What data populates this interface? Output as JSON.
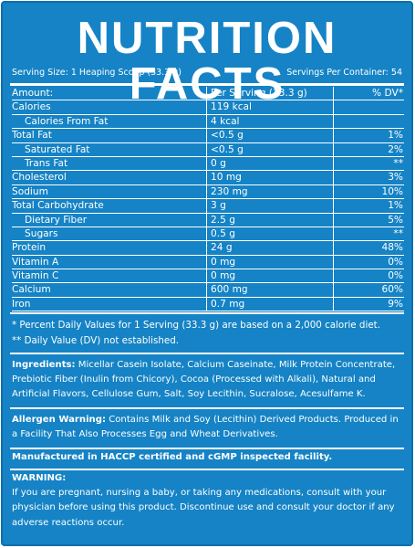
{
  "title": "NUTRITION FACTS",
  "serving_size": "Serving Size: 1 Heaping Scoop (33.3 g)",
  "servings_per_container": "Servings Per Container: 54",
  "table": {
    "header": {
      "amount": "Amount:",
      "per_serving": "Per Serving (33.3 g)",
      "dv": "% DV*"
    },
    "rows": [
      {
        "name": "Calories",
        "amount": "119 kcal",
        "dv": "",
        "sub": false
      },
      {
        "name": "Calories From Fat",
        "amount": "4 kcal",
        "dv": "",
        "sub": true
      },
      {
        "name": "Total Fat",
        "amount": "<0.5 g",
        "dv": "1%",
        "sub": false
      },
      {
        "name": "Saturated Fat",
        "amount": "<0.5 g",
        "dv": "2%",
        "sub": true
      },
      {
        "name": "Trans Fat",
        "amount": "0 g",
        "dv": "**",
        "sub": true
      },
      {
        "name": "Cholesterol",
        "amount": "10 mg",
        "dv": "3%",
        "sub": false
      },
      {
        "name": "Sodium",
        "amount": "230 mg",
        "dv": "10%",
        "sub": false
      },
      {
        "name": "Total Carbohydrate",
        "amount": "3 g",
        "dv": "1%",
        "sub": false
      },
      {
        "name": "Dietary Fiber",
        "amount": "2.5 g",
        "dv": "5%",
        "sub": true
      },
      {
        "name": "Sugars",
        "amount": "0.5 g",
        "dv": "**",
        "sub": true
      },
      {
        "name": "Protein",
        "amount": "24 g",
        "dv": "48%",
        "sub": false
      },
      {
        "name": "Vitamin A",
        "amount": "0 mg",
        "dv": "0%",
        "sub": false
      },
      {
        "name": "Vitamin C",
        "amount": "0 mg",
        "dv": "0%",
        "sub": false
      },
      {
        "name": "Calcium",
        "amount": "600 mg",
        "dv": "60%",
        "sub": false
      },
      {
        "name": "Iron",
        "amount": "0.7 mg",
        "dv": "9%",
        "sub": false
      }
    ]
  },
  "footnotes": [
    "* Percent Daily Values for 1 Serving (33.3 g) are based on a 2,000 calorie diet.",
    "** Daily Value (DV) not established."
  ],
  "ingredients": {
    "label": "Ingredients:",
    "text": " Micellar Casein Isolate, Calcium Caseinate, Milk Protein Concentrate, Prebiotic Fiber (Inulin from Chicory), Cocoa (Processed with Alkali), Natural and Artificial Flavors, Cellulose Gum, Salt, Soy Lecithin, Sucralose, Acesulfame K."
  },
  "allergen": {
    "label": "Allergen Warning:",
    "text": " Contains Milk and Soy (Lecithin) Derived Products. Produced in a Facility That Also Processes Egg and Wheat Derivatives."
  },
  "manufactured": "Manufactured in HACCP certified and cGMP inspected facility.",
  "warning": {
    "label": "WARNING:",
    "text": "If you are pregnant, nursing a baby, or taking any medications, consult with your physician before using this product. Discontinue use and consult your doctor if any adverse reactions occur."
  },
  "colors": {
    "background": "#1583c5",
    "text": "#ffffff"
  }
}
